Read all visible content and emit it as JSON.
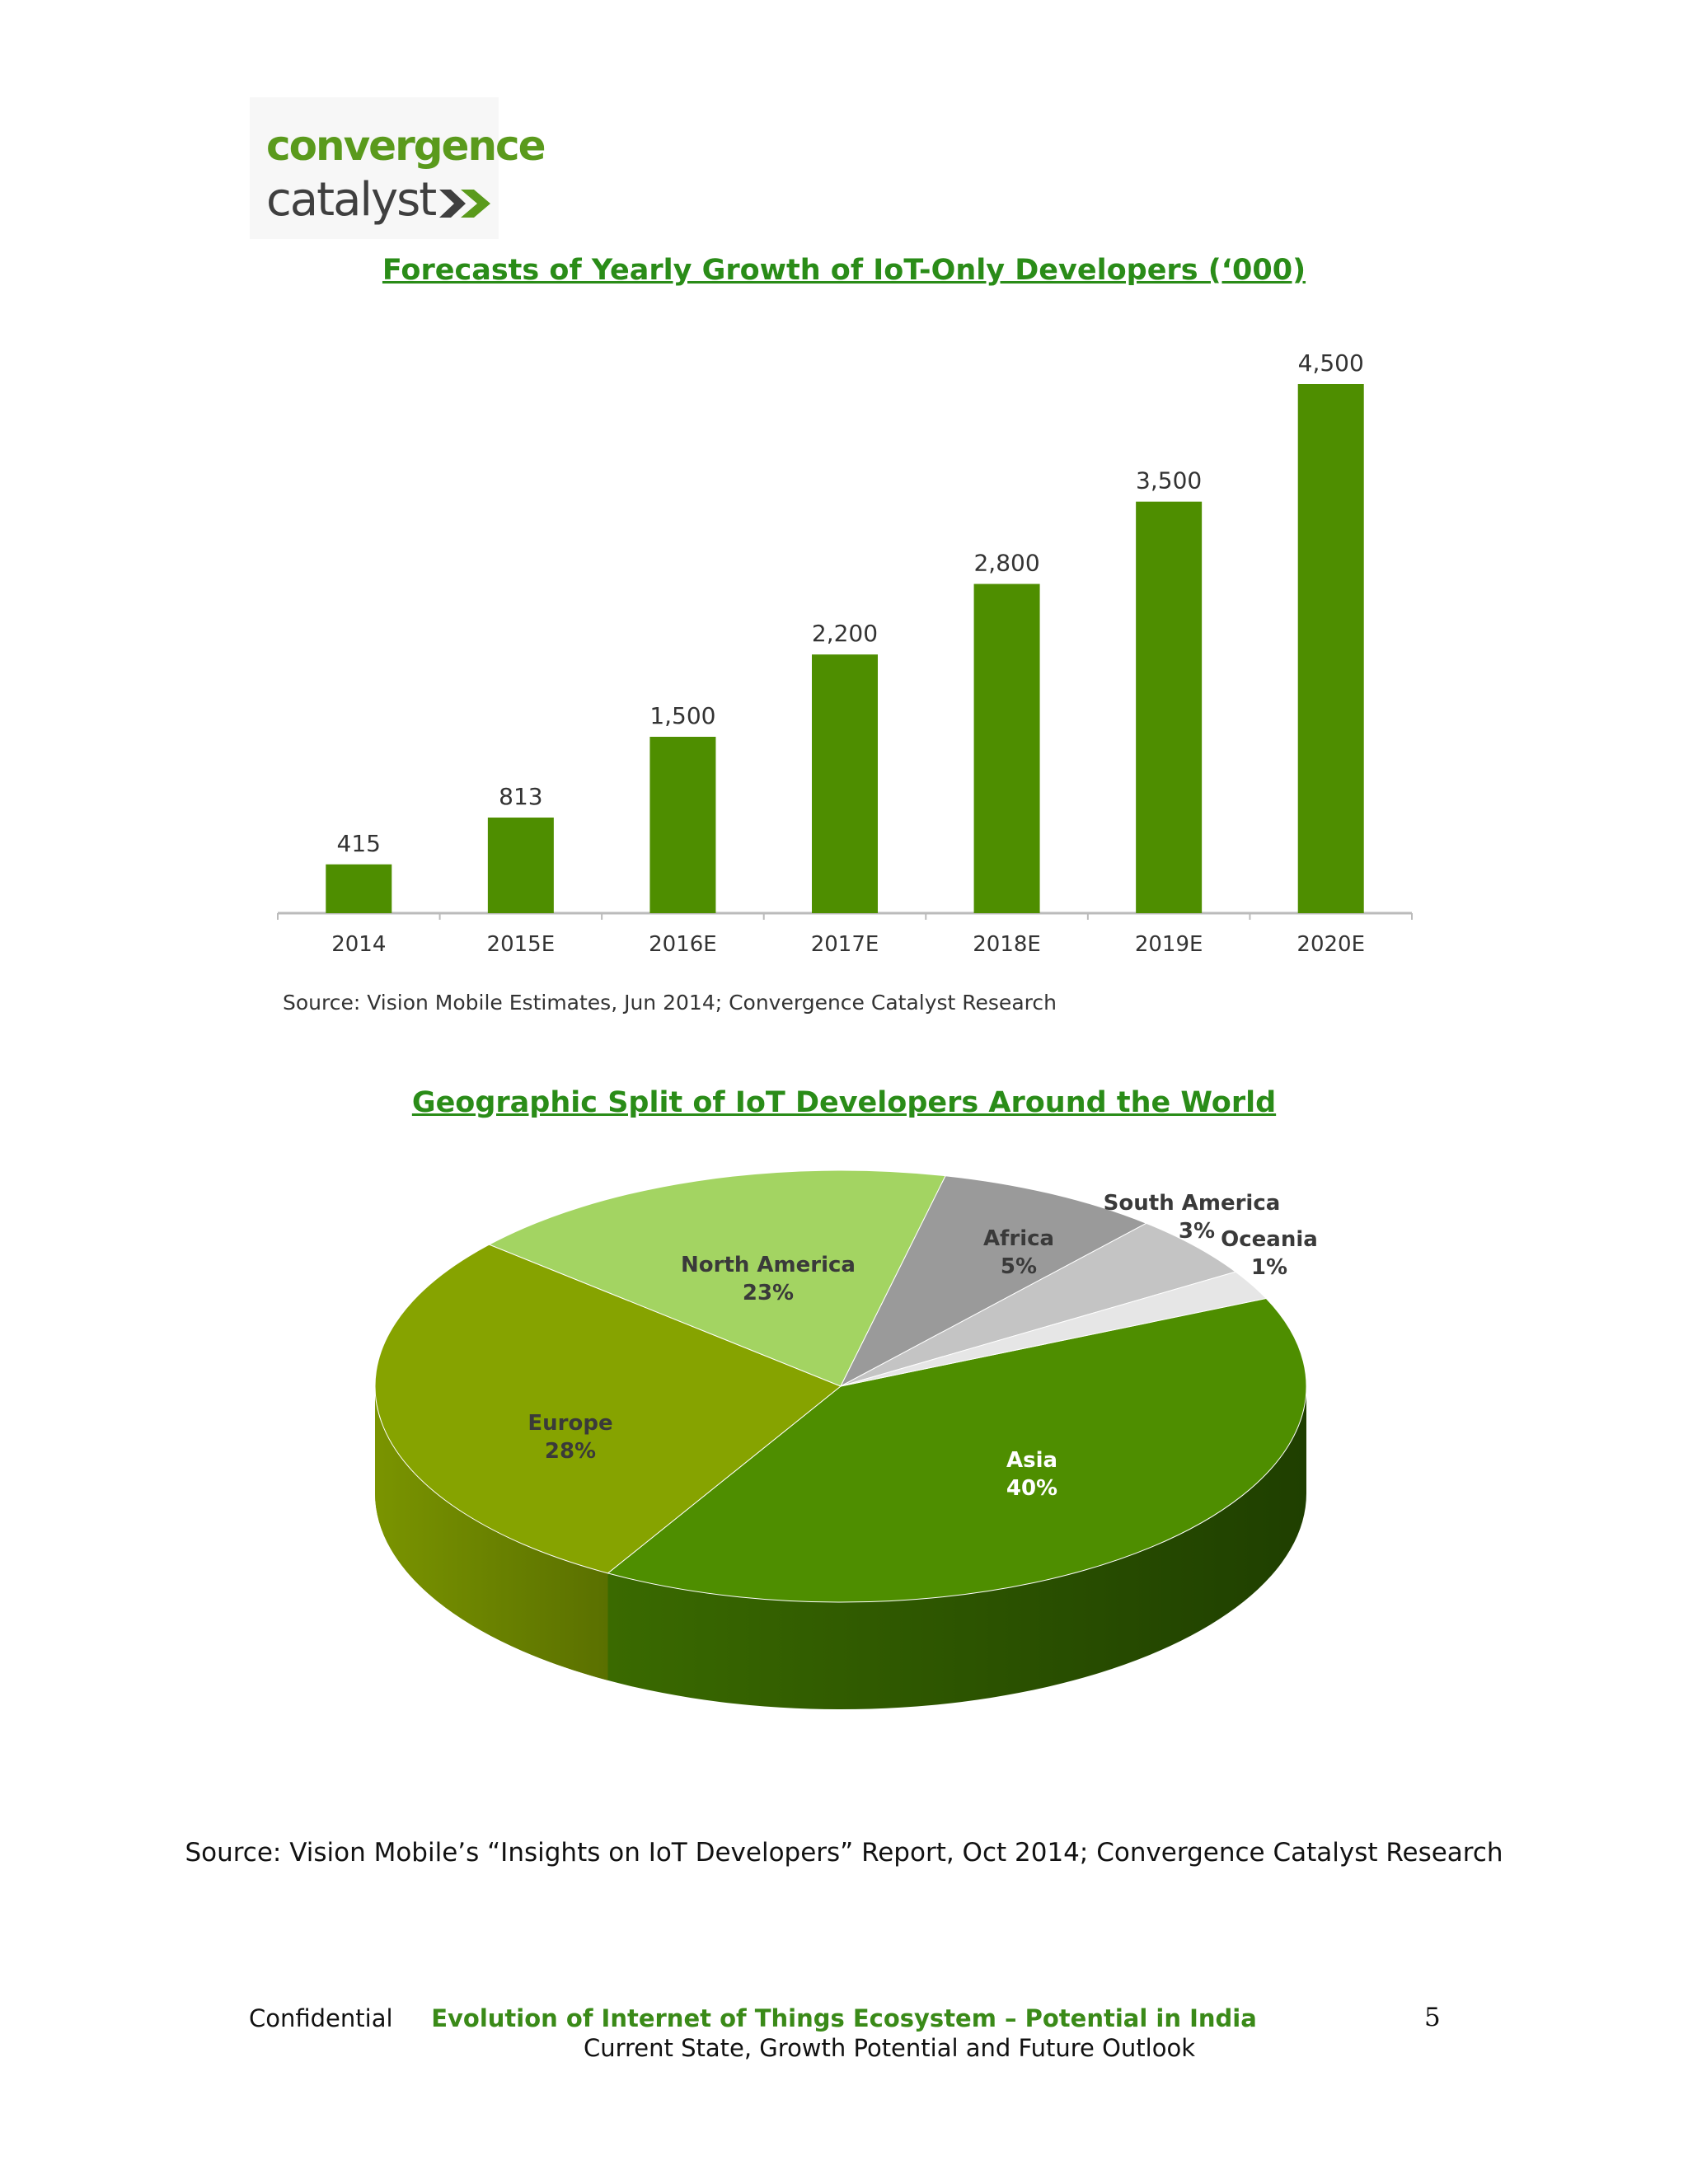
{
  "logo": {
    "line1": "convergence",
    "line2": "catalyst"
  },
  "bar_section": {
    "title": "Forecasts of Yearly Growth of IoT-Only Developers (‘000)",
    "source": "Source: Vision Mobile Estimates, Jun 2014; Convergence Catalyst Research"
  },
  "pie_section": {
    "title": "Geographic Split of IoT Developers Around the World"
  },
  "source": "Source: Vision Mobile’s “Insights on IoT Developers” Report, Oct 2014; Convergence Catalyst Research",
  "footer": {
    "left": "Confidential",
    "title": "Evolution of Internet of Things Ecosystem – Potential in India",
    "subtitle": "Current State, Growth Potential and Future Outlook",
    "page": "5"
  },
  "colors": {
    "bar": "#4e8e00",
    "title_green": "#2a8c18"
  },
  "chart_data": [
    {
      "type": "bar",
      "title": "Forecasts of Yearly Growth of IoT-Only Developers (‘000)",
      "categories": [
        "2014",
        "2015E",
        "2016E",
        "2017E",
        "2018E",
        "2019E",
        "2020E"
      ],
      "values": [
        415,
        813,
        1500,
        2200,
        2800,
        3500,
        4500
      ],
      "value_labels": [
        "415",
        "813",
        "1,500",
        "2,200",
        "2,800",
        "3,500",
        "4,500"
      ],
      "ylim": [
        0,
        4500
      ],
      "grid": false
    },
    {
      "type": "pie",
      "title": "Geographic Split of IoT Developers Around the World",
      "slices": [
        {
          "name": "Asia",
          "value": 40,
          "label": "40%",
          "color": "#4e8e00"
        },
        {
          "name": "Europe",
          "value": 28,
          "label": "28%",
          "color": "#86a300"
        },
        {
          "name": "North America",
          "value": 23,
          "label": "23%",
          "color": "#a3d462"
        },
        {
          "name": "Africa",
          "value": 5,
          "label": "5%",
          "color": "#9a9a9a"
        },
        {
          "name": "South America",
          "value": 3,
          "label": "3%",
          "color": "#c4c4c4"
        },
        {
          "name": "Oceania",
          "value": 1,
          "label": "1%",
          "color": "#e6e6e6"
        }
      ]
    }
  ]
}
